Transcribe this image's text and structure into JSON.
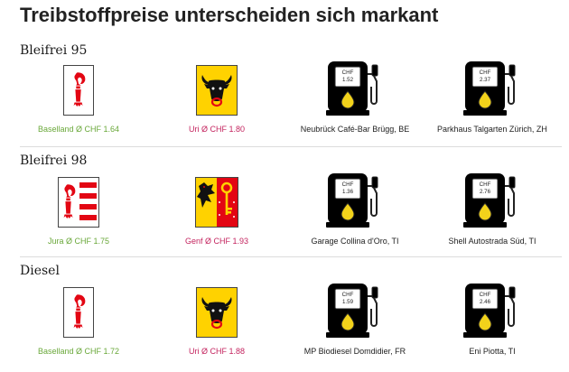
{
  "title": "Treibstoffpreise unterscheiden sich markant",
  "colors": {
    "green": "#6aa83a",
    "pink": "#c4245f",
    "pump_green": "#8dc63f",
    "pump_red": "#cc2158",
    "drop": "#f2d21b"
  },
  "sections": [
    {
      "name": "Bleifrei 95",
      "cheap_canton": "Baselland Ø CHF 1.64",
      "expensive_canton": "Uri Ø CHF 1.80",
      "cheapest_station": "Neubrück Café-Bar Brügg, BE",
      "cheapest_price": "1.52",
      "dearest_station": "Parkhaus Talgarten Zürich, ZH",
      "dearest_price": "2.37"
    },
    {
      "name": "Bleifrei 98",
      "cheap_canton": "Jura Ø CHF 1.75",
      "expensive_canton": "Genf Ø CHF 1.93",
      "cheapest_station": "Garage Collina d'Oro, TI",
      "cheapest_price": "1.36",
      "dearest_station": "Shell Autostrada Süd, TI",
      "dearest_price": "2.76"
    },
    {
      "name": "Diesel",
      "cheap_canton": "Baselland Ø CHF 1.72",
      "expensive_canton": "Uri Ø CHF 1.88",
      "cheapest_station": "MP Biodiesel Domdidier, FR",
      "cheapest_price": "1.59",
      "dearest_station": "Eni Piotta, TI",
      "dearest_price": "2.46"
    }
  ],
  "currency": "CHF",
  "icons": {
    "baselland": "baselland-flag-icon",
    "uri": "uri-flag-icon",
    "jura": "jura-flag-icon",
    "genf": "geneva-flag-icon",
    "pump_green": "fuel-pump-green-icon",
    "pump_red": "fuel-pump-red-icon"
  }
}
